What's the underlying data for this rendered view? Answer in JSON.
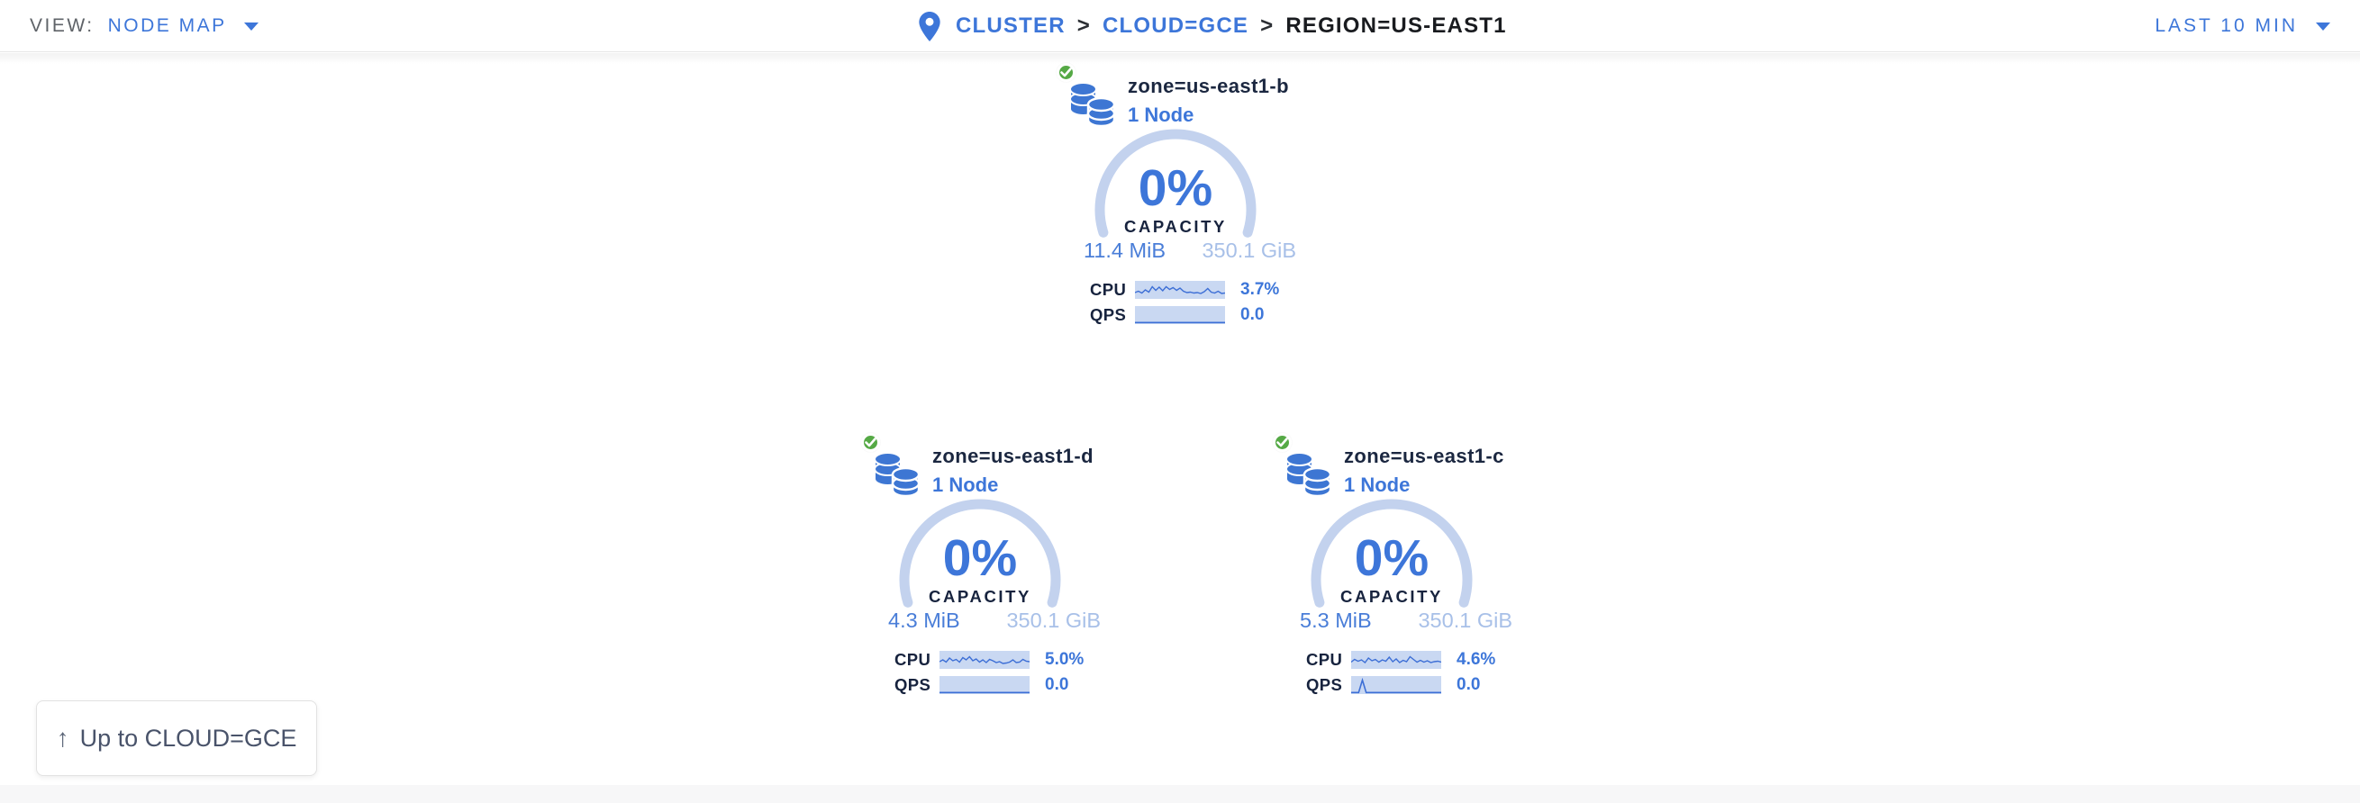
{
  "header": {
    "view_label": "VIEW:",
    "view_value": "NODE MAP",
    "separator": ">",
    "breadcrumb": {
      "cluster": "CLUSTER",
      "cloud": "CLOUD=GCE",
      "current": "REGION=US-EAST1"
    },
    "time_range": "LAST 10 MIN"
  },
  "cards": [
    {
      "title": "zone=us-east1-b",
      "subtitle": "1 Node",
      "status": "healthy",
      "capacity_pct": "0%",
      "capacity_label": "CAPACITY",
      "capacity_used": "11.4 MiB",
      "capacity_total": "350.1 GiB",
      "cpu_label": "CPU",
      "cpu_value": "3.7%",
      "qps_label": "QPS",
      "qps_value": "0.0",
      "cpu_spark": [
        13,
        11.5,
        13.5,
        10,
        12.5,
        6.5,
        10.5,
        7,
        11,
        6.5,
        9.5,
        7.5,
        10.5,
        8,
        11.5,
        13,
        12.5,
        13.5,
        13,
        14,
        12,
        8.5,
        12.5,
        13.5,
        11.5,
        14,
        13.5
      ],
      "qps_spark": [
        18.3,
        18.3
      ]
    },
    {
      "title": "zone=us-east1-d",
      "subtitle": "1 Node",
      "status": "healthy",
      "capacity_pct": "0%",
      "capacity_label": "CAPACITY",
      "capacity_used": "4.3 MiB",
      "capacity_total": "350.1 GiB",
      "cpu_label": "CPU",
      "cpu_value": "5.0%",
      "qps_label": "QPS",
      "qps_value": "0.0",
      "cpu_spark": [
        12,
        10,
        12.5,
        8,
        11,
        9.5,
        12.5,
        7.5,
        10,
        6.5,
        11,
        9,
        12.5,
        10,
        13,
        9.5,
        11,
        13,
        12,
        14,
        13.5,
        12.5,
        10,
        13,
        12.5,
        9.5,
        11.5,
        12
      ],
      "qps_spark": [
        18.3,
        18.3
      ]
    },
    {
      "title": "zone=us-east1-c",
      "subtitle": "1 Node",
      "status": "healthy",
      "capacity_pct": "0%",
      "capacity_label": "CAPACITY",
      "capacity_used": "5.3 MiB",
      "capacity_total": "350.1 GiB",
      "cpu_label": "CPU",
      "cpu_value": "4.6%",
      "qps_label": "QPS",
      "qps_value": "0.0",
      "cpu_spark": [
        12.5,
        9.5,
        11.5,
        10,
        13,
        8,
        11,
        9.5,
        12.5,
        10,
        11.5,
        7,
        12,
        9,
        13,
        10.5,
        12,
        6.5,
        9.5,
        12.5,
        10.5,
        12.5,
        11,
        13,
        12,
        11.5,
        12.5
      ],
      "qps_spark": [
        18.3,
        18.3,
        18.3,
        4.5,
        18.3,
        18.3,
        18.3,
        18.3,
        18.3,
        18.3,
        18.3,
        18.3,
        18.3,
        18.3,
        18.3,
        18.3,
        18.3,
        18.3,
        18.3,
        18.3,
        18.3,
        18.3,
        18.3,
        18.3,
        18.3
      ]
    }
  ],
  "up_button": {
    "label": "Up to CLOUD=GCE"
  },
  "colors": {
    "accent_blue": "#3d76d9",
    "ring_light_blue": "#c3d2ee",
    "spark_bg": "#c9d8f2",
    "spark_line": "#3d6fd6",
    "navy_text": "#17233e",
    "capacity_total_blue": "#a8c0e8",
    "healthy_green": "#55a945"
  }
}
